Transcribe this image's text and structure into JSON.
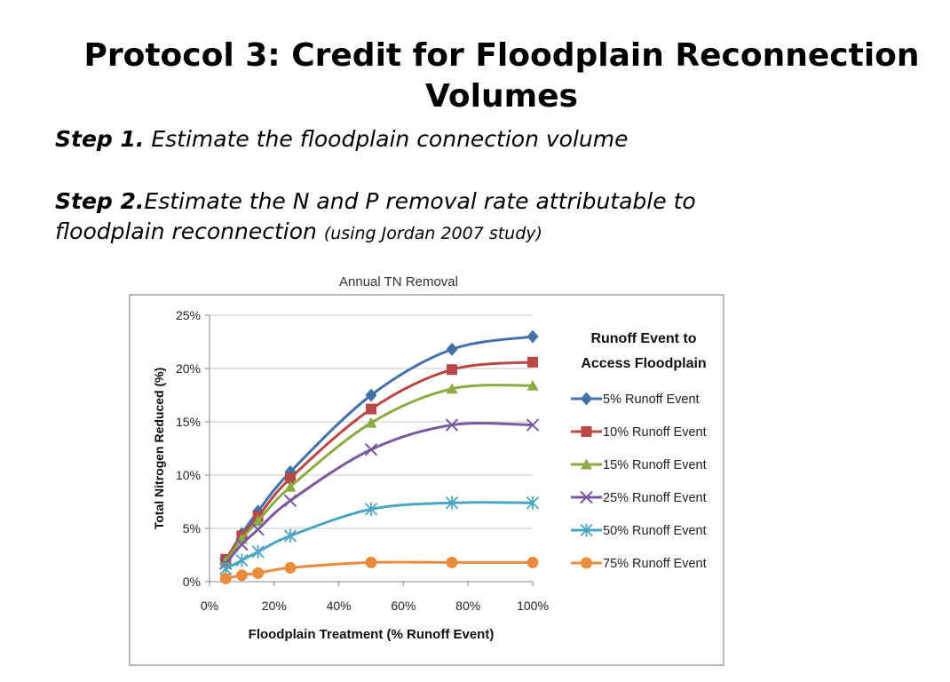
{
  "slide": {
    "title_line1": "Protocol 3: Credit for Floodplain Reconnection",
    "title_line2": "Volumes",
    "step1_label": "Step 1.",
    "step1_text": "Estimate the floodplain connection volume",
    "step2_label": "Step 2.",
    "step2_text_line1": "Estimate the N and P removal rate attributable to",
    "step2_text_line2": "floodplain reconnection",
    "step2_note": "(using Jordan 2007 study)"
  },
  "chart_data": {
    "type": "line",
    "title": "Annual TN Removal",
    "xlabel": "Floodplain Treatment (% Runoff Event)",
    "ylabel": "Total Nitrogen Reduced (%)",
    "xlim": [
      0,
      100
    ],
    "ylim": [
      0,
      25
    ],
    "x_ticks": [
      0,
      20,
      40,
      60,
      80,
      100
    ],
    "y_ticks": [
      0,
      5,
      10,
      15,
      20,
      25
    ],
    "x_tick_labels": [
      "0%",
      "20%",
      "40%",
      "60%",
      "80%",
      "100%"
    ],
    "y_tick_labels": [
      "0%",
      "5%",
      "10%",
      "15%",
      "20%",
      "25%"
    ],
    "grid": "horizontal",
    "legend_title_line1": "Runoff Event to",
    "legend_title_line2": "Access Floodplain",
    "legend_position": "right",
    "x": [
      5,
      10,
      15,
      25,
      50,
      75,
      100
    ],
    "series": [
      {
        "name": "5% Runoff Event",
        "marker": "diamond",
        "color": "#4472A8",
        "values": [
          2.0,
          4.5,
          6.6,
          10.3,
          17.5,
          21.8,
          23.0
        ]
      },
      {
        "name": "10% Runoff Event",
        "marker": "square",
        "color": "#B84747",
        "values": [
          2.1,
          4.3,
          6.1,
          9.7,
          16.2,
          19.9,
          20.6
        ]
      },
      {
        "name": "15% Runoff Event",
        "marker": "triangle",
        "color": "#8BAB45",
        "values": [
          1.9,
          4.0,
          5.7,
          8.9,
          14.9,
          18.1,
          18.4
        ]
      },
      {
        "name": "25% Runoff Event",
        "marker": "x",
        "color": "#7A5A9E",
        "values": [
          1.7,
          3.5,
          4.9,
          7.6,
          12.4,
          14.7,
          14.7
        ]
      },
      {
        "name": "50% Runoff Event",
        "marker": "star",
        "color": "#4AA5C1",
        "values": [
          1.2,
          2.0,
          2.8,
          4.3,
          6.8,
          7.4,
          7.4
        ]
      },
      {
        "name": "75% Runoff Event",
        "marker": "circle",
        "color": "#EA8B3E",
        "values": [
          0.3,
          0.6,
          0.8,
          1.3,
          1.8,
          1.8,
          1.8
        ]
      }
    ]
  }
}
